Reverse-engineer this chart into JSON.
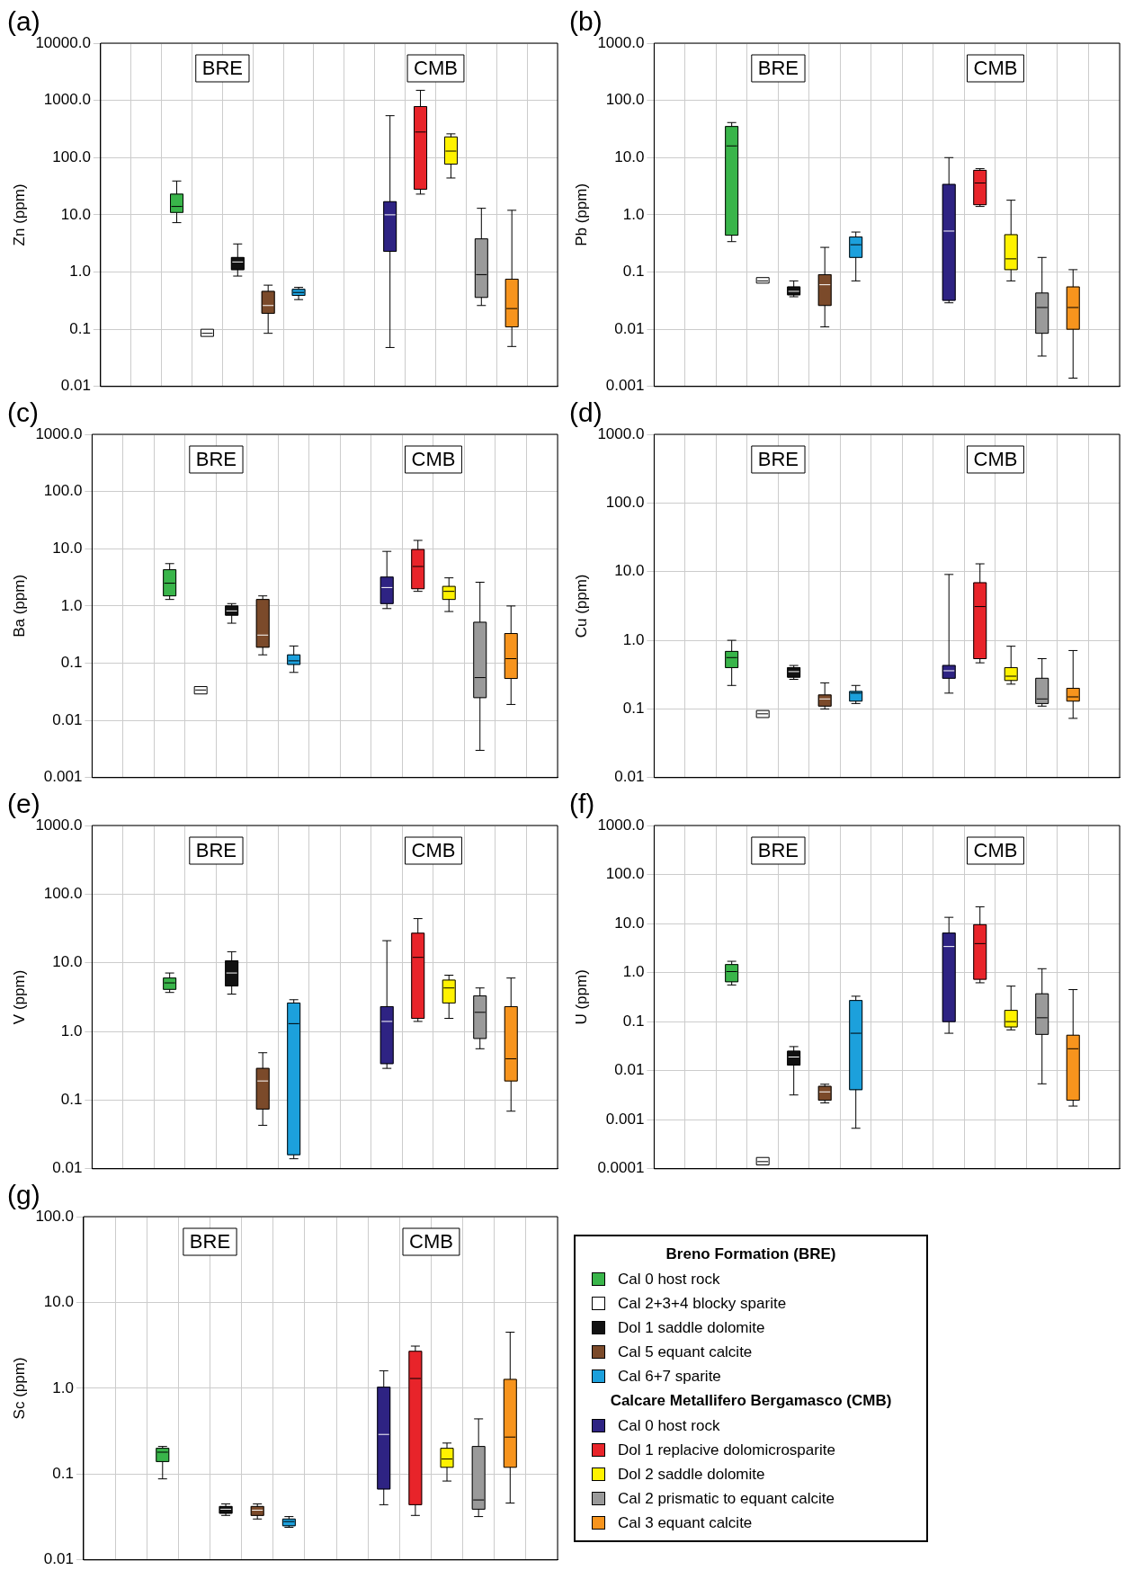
{
  "chart_data": [
    {
      "type": "box",
      "title": "(a)",
      "ylabel": "Zn (ppm)",
      "categories": [
        "BRE",
        "CMB"
      ],
      "log": true,
      "grid": true,
      "ylim": [
        0.01,
        10000
      ],
      "yticks": [
        0.01,
        0.1,
        {
          "value": 1,
          "label": "1.0"
        },
        {
          "value": 10,
          "label": "10.0"
        },
        {
          "value": 100,
          "label": "100.0"
        },
        {
          "value": 1000,
          "label": "1000.0"
        },
        {
          "value": 10000,
          "label": "10000.0"
        }
      ],
      "series": [
        {
          "color": "#39b54a",
          "boxes": [
            {
              "low": 7.3,
              "q1": 11,
              "median": 14,
              "q3": 23,
              "high": 39
            },
            null
          ]
        },
        {
          "color": "#ffffff",
          "boxes": [
            {
              "low": 0.075,
              "q1": 0.075,
              "median": 0.085,
              "q3": 0.1,
              "high": 0.1
            },
            null
          ]
        },
        {
          "color": "#111111",
          "boxes": [
            {
              "low": 0.85,
              "q1": 1.1,
              "median": 1.5,
              "q3": 1.8,
              "high": 3.1
            },
            null
          ]
        },
        {
          "color": "#7b4a2a",
          "boxes": [
            {
              "low": 0.085,
              "q1": 0.19,
              "median": 0.26,
              "q3": 0.46,
              "high": 0.59
            },
            null
          ]
        },
        {
          "color": "#1ca0dc",
          "boxes": [
            {
              "low": 0.33,
              "q1": 0.39,
              "median": 0.44,
              "q3": 0.5,
              "high": 0.54
            },
            null
          ]
        },
        {
          "color": "#2e2383",
          "boxes": [
            null,
            {
              "low": 0.048,
              "q1": 2.3,
              "median": 10,
              "q3": 17,
              "high": 540
            }
          ]
        },
        {
          "color": "#e8242a",
          "boxes": [
            null,
            {
              "low": 23,
              "q1": 28,
              "median": 280,
              "q3": 780,
              "high": 1500
            }
          ]
        },
        {
          "color": "#fff200",
          "boxes": [
            null,
            {
              "low": 44,
              "q1": 77,
              "median": 130,
              "q3": 230,
              "high": 260
            }
          ]
        },
        {
          "color": "#9a9a9a",
          "boxes": [
            null,
            {
              "low": 0.26,
              "q1": 0.36,
              "median": 0.9,
              "q3": 3.8,
              "high": 13
            }
          ]
        },
        {
          "color": "#f7941d",
          "boxes": [
            null,
            {
              "low": 0.05,
              "q1": 0.11,
              "median": 0.23,
              "q3": 0.75,
              "high": 12
            }
          ]
        }
      ]
    },
    {
      "type": "box",
      "title": "(b)",
      "ylabel": "Pb (ppm)",
      "categories": [
        "BRE",
        "CMB"
      ],
      "log": true,
      "grid": true,
      "ylim": [
        0.001,
        1000
      ],
      "yticks": [
        0.001,
        0.01,
        0.1,
        {
          "value": 1,
          "label": "1.0"
        },
        {
          "value": 10,
          "label": "10.0"
        },
        {
          "value": 100,
          "label": "100.0"
        },
        {
          "value": 1000,
          "label": "1000.0"
        }
      ],
      "series": [
        {
          "color": "#39b54a",
          "boxes": [
            {
              "low": 0.34,
              "q1": 0.44,
              "median": 16,
              "q3": 35,
              "high": 41
            },
            null
          ]
        },
        {
          "color": "#ffffff",
          "boxes": [
            {
              "low": 0.064,
              "q1": 0.064,
              "median": 0.07,
              "q3": 0.08,
              "high": 0.08
            },
            null
          ]
        },
        {
          "color": "#111111",
          "boxes": [
            {
              "low": 0.037,
              "q1": 0.04,
              "median": 0.046,
              "q3": 0.055,
              "high": 0.07
            },
            null
          ]
        },
        {
          "color": "#7b4a2a",
          "boxes": [
            {
              "low": 0.011,
              "q1": 0.026,
              "median": 0.06,
              "q3": 0.09,
              "high": 0.27
            },
            null
          ]
        },
        {
          "color": "#1ca0dc",
          "boxes": [
            {
              "low": 0.07,
              "q1": 0.18,
              "median": 0.3,
              "q3": 0.41,
              "high": 0.5
            },
            null
          ]
        },
        {
          "color": "#2e2383",
          "boxes": [
            null,
            {
              "low": 0.029,
              "q1": 0.032,
              "median": 0.52,
              "q3": 3.4,
              "high": 10
            }
          ]
        },
        {
          "color": "#e8242a",
          "boxes": [
            null,
            {
              "low": 1.4,
              "q1": 1.5,
              "median": 3.6,
              "q3": 6,
              "high": 6.4
            }
          ]
        },
        {
          "color": "#fff200",
          "boxes": [
            null,
            {
              "low": 0.07,
              "q1": 0.11,
              "median": 0.17,
              "q3": 0.45,
              "high": 1.8
            }
          ]
        },
        {
          "color": "#9a9a9a",
          "boxes": [
            null,
            {
              "low": 0.0034,
              "q1": 0.0085,
              "median": 0.024,
              "q3": 0.043,
              "high": 0.18
            }
          ]
        },
        {
          "color": "#f7941d",
          "boxes": [
            null,
            {
              "low": 0.0014,
              "q1": 0.01,
              "median": 0.024,
              "q3": 0.055,
              "high": 0.11
            }
          ]
        }
      ]
    },
    {
      "type": "box",
      "title": "(c)",
      "ylabel": "Ba (ppm)",
      "categories": [
        "BRE",
        "CMB"
      ],
      "log": true,
      "grid": true,
      "ylim": [
        0.001,
        1000
      ],
      "yticks": [
        0.001,
        0.01,
        0.1,
        {
          "value": 1,
          "label": "1.0"
        },
        {
          "value": 10,
          "label": "10.0"
        },
        {
          "value": 100,
          "label": "100.0"
        },
        {
          "value": 1000,
          "label": "1000.0"
        }
      ],
      "series": [
        {
          "color": "#39b54a",
          "boxes": [
            {
              "low": 1.3,
              "q1": 1.5,
              "median": 2.5,
              "q3": 4.3,
              "high": 5.5
            },
            null
          ]
        },
        {
          "color": "#ffffff",
          "boxes": [
            {
              "low": 0.029,
              "q1": 0.029,
              "median": 0.034,
              "q3": 0.039,
              "high": 0.039
            },
            null
          ]
        },
        {
          "color": "#111111",
          "boxes": [
            {
              "low": 0.5,
              "q1": 0.69,
              "median": 0.82,
              "q3": 1,
              "high": 1.1
            },
            null
          ]
        },
        {
          "color": "#7b4a2a",
          "boxes": [
            {
              "low": 0.14,
              "q1": 0.19,
              "median": 0.31,
              "q3": 1.3,
              "high": 1.5
            },
            null
          ]
        },
        {
          "color": "#1ca0dc",
          "boxes": [
            {
              "low": 0.069,
              "q1": 0.095,
              "median": 0.11,
              "q3": 0.14,
              "high": 0.2
            },
            null
          ]
        },
        {
          "color": "#2e2383",
          "boxes": [
            null,
            {
              "low": 0.9,
              "q1": 1.1,
              "median": 2.1,
              "q3": 3.2,
              "high": 9
            }
          ]
        },
        {
          "color": "#e8242a",
          "boxes": [
            null,
            {
              "low": 1.8,
              "q1": 2,
              "median": 4.9,
              "q3": 9.7,
              "high": 14
            }
          ]
        },
        {
          "color": "#fff200",
          "boxes": [
            null,
            {
              "low": 0.8,
              "q1": 1.3,
              "median": 1.8,
              "q3": 2.2,
              "high": 3.1
            }
          ]
        },
        {
          "color": "#9a9a9a",
          "boxes": [
            null,
            {
              "low": 0.003,
              "q1": 0.025,
              "median": 0.056,
              "q3": 0.52,
              "high": 2.6
            }
          ]
        },
        {
          "color": "#f7941d",
          "boxes": [
            null,
            {
              "low": 0.019,
              "q1": 0.054,
              "median": 0.12,
              "q3": 0.33,
              "high": 1
            }
          ]
        }
      ]
    },
    {
      "type": "box",
      "title": "(d)",
      "ylabel": "Cu (ppm)",
      "categories": [
        "BRE",
        "CMB"
      ],
      "log": true,
      "grid": true,
      "ylim": [
        0.01,
        1000
      ],
      "yticks": [
        0.01,
        0.1,
        {
          "value": 1,
          "label": "1.0"
        },
        {
          "value": 10,
          "label": "10.0"
        },
        {
          "value": 100,
          "label": "100.0"
        },
        {
          "value": 1000,
          "label": "1000.0"
        }
      ],
      "series": [
        {
          "color": "#39b54a",
          "boxes": [
            {
              "low": 0.22,
              "q1": 0.4,
              "median": 0.56,
              "q3": 0.69,
              "high": 1
            },
            null
          ]
        },
        {
          "color": "#ffffff",
          "boxes": [
            {
              "low": 0.075,
              "q1": 0.075,
              "median": 0.085,
              "q3": 0.095,
              "high": 0.095
            },
            null
          ]
        },
        {
          "color": "#111111",
          "boxes": [
            {
              "low": 0.27,
              "q1": 0.29,
              "median": 0.35,
              "q3": 0.4,
              "high": 0.43
            },
            null
          ]
        },
        {
          "color": "#7b4a2a",
          "boxes": [
            {
              "low": 0.1,
              "q1": 0.11,
              "median": 0.14,
              "q3": 0.16,
              "high": 0.24
            },
            null
          ]
        },
        {
          "color": "#1ca0dc",
          "boxes": [
            {
              "low": 0.12,
              "q1": 0.13,
              "median": 0.17,
              "q3": 0.18,
              "high": 0.22
            },
            null
          ]
        },
        {
          "color": "#2e2383",
          "boxes": [
            null,
            {
              "low": 0.17,
              "q1": 0.28,
              "median": 0.36,
              "q3": 0.43,
              "high": 9.1
            }
          ]
        },
        {
          "color": "#e8242a",
          "boxes": [
            null,
            {
              "low": 0.47,
              "q1": 0.54,
              "median": 3.1,
              "q3": 6.9,
              "high": 13
            }
          ]
        },
        {
          "color": "#fff200",
          "boxes": [
            null,
            {
              "low": 0.23,
              "q1": 0.26,
              "median": 0.3,
              "q3": 0.4,
              "high": 0.82
            }
          ]
        },
        {
          "color": "#9a9a9a",
          "boxes": [
            null,
            {
              "low": 0.11,
              "q1": 0.12,
              "median": 0.14,
              "q3": 0.28,
              "high": 0.54
            }
          ]
        },
        {
          "color": "#f7941d",
          "boxes": [
            null,
            {
              "low": 0.073,
              "q1": 0.13,
              "median": 0.15,
              "q3": 0.2,
              "high": 0.71
            }
          ]
        }
      ]
    },
    {
      "type": "box",
      "title": "(e)",
      "ylabel": "V (ppm)",
      "categories": [
        "BRE",
        "CMB"
      ],
      "log": true,
      "grid": true,
      "ylim": [
        0.01,
        1000
      ],
      "yticks": [
        0.01,
        0.1,
        {
          "value": 1,
          "label": "1.0"
        },
        {
          "value": 10,
          "label": "10.0"
        },
        {
          "value": 100,
          "label": "100.0"
        },
        {
          "value": 1000,
          "label": "1000.0"
        }
      ],
      "series": [
        {
          "color": "#39b54a",
          "boxes": [
            {
              "low": 3.7,
              "q1": 4.1,
              "median": 5.1,
              "q3": 6,
              "high": 7.1
            },
            null
          ]
        },
        {
          "color": "#ffffff",
          "boxes": [
            null,
            null
          ]
        },
        {
          "color": "#111111",
          "boxes": [
            {
              "low": 3.5,
              "q1": 4.6,
              "median": 7.1,
              "q3": 10.7,
              "high": 14.5
            },
            null
          ]
        },
        {
          "color": "#7b4a2a",
          "boxes": [
            {
              "low": 0.043,
              "q1": 0.074,
              "median": 0.19,
              "q3": 0.29,
              "high": 0.49
            },
            null
          ]
        },
        {
          "color": "#1ca0dc",
          "boxes": [
            {
              "low": 0.014,
              "q1": 0.016,
              "median": 1.3,
              "q3": 2.6,
              "high": 2.9
            },
            null
          ]
        },
        {
          "color": "#2e2383",
          "boxes": [
            null,
            {
              "low": 0.29,
              "q1": 0.34,
              "median": 1.4,
              "q3": 2.3,
              "high": 21
            }
          ]
        },
        {
          "color": "#e8242a",
          "boxes": [
            null,
            {
              "low": 1.4,
              "q1": 1.55,
              "median": 12,
              "q3": 27,
              "high": 44
            }
          ]
        },
        {
          "color": "#fff200",
          "boxes": [
            null,
            {
              "low": 1.55,
              "q1": 2.6,
              "median": 4.3,
              "q3": 5.6,
              "high": 6.6
            }
          ]
        },
        {
          "color": "#9a9a9a",
          "boxes": [
            null,
            {
              "low": 0.56,
              "q1": 0.79,
              "median": 1.9,
              "q3": 3.3,
              "high": 4.3
            }
          ]
        },
        {
          "color": "#f7941d",
          "boxes": [
            null,
            {
              "low": 0.069,
              "q1": 0.19,
              "median": 0.4,
              "q3": 2.3,
              "high": 6
            }
          ]
        }
      ]
    },
    {
      "type": "box",
      "title": "(f)",
      "ylabel": "U (ppm)",
      "categories": [
        "BRE",
        "CMB"
      ],
      "log": true,
      "grid": true,
      "ylim": [
        0.0001,
        1000
      ],
      "yticks": [
        0.0001,
        0.001,
        0.01,
        0.1,
        {
          "value": 1,
          "label": "1.0"
        },
        {
          "value": 10,
          "label": "10.0"
        },
        {
          "value": 100,
          "label": "100.0"
        },
        {
          "value": 1000,
          "label": "1000.0"
        }
      ],
      "series": [
        {
          "color": "#39b54a",
          "boxes": [
            {
              "low": 0.56,
              "q1": 0.65,
              "median": 1.05,
              "q3": 1.46,
              "high": 1.7
            },
            null
          ]
        },
        {
          "color": "#ffffff",
          "boxes": [
            {
              "low": 0.00012,
              "q1": 0.00012,
              "median": 0.00014,
              "q3": 0.00017,
              "high": 0.00017
            },
            null
          ]
        },
        {
          "color": "#111111",
          "boxes": [
            {
              "low": 0.0032,
              "q1": 0.013,
              "median": 0.019,
              "q3": 0.025,
              "high": 0.031
            },
            null
          ]
        },
        {
          "color": "#7b4a2a",
          "boxes": [
            {
              "low": 0.0022,
              "q1": 0.0025,
              "median": 0.0037,
              "q3": 0.0048,
              "high": 0.0053
            },
            null
          ]
        },
        {
          "color": "#1ca0dc",
          "boxes": [
            {
              "low": 0.00067,
              "q1": 0.0041,
              "median": 0.058,
              "q3": 0.27,
              "high": 0.33
            },
            null
          ]
        },
        {
          "color": "#2e2383",
          "boxes": [
            null,
            {
              "low": 0.058,
              "q1": 0.1,
              "median": 3.4,
              "q3": 6.4,
              "high": 13.4
            }
          ]
        },
        {
          "color": "#e8242a",
          "boxes": [
            null,
            {
              "low": 0.62,
              "q1": 0.73,
              "median": 3.9,
              "q3": 9.5,
              "high": 22
            }
          ]
        },
        {
          "color": "#fff200",
          "boxes": [
            null,
            {
              "low": 0.068,
              "q1": 0.078,
              "median": 0.1,
              "q3": 0.17,
              "high": 0.53
            }
          ]
        },
        {
          "color": "#9a9a9a",
          "boxes": [
            null,
            {
              "low": 0.0054,
              "q1": 0.055,
              "median": 0.12,
              "q3": 0.37,
              "high": 1.2
            }
          ]
        },
        {
          "color": "#f7941d",
          "boxes": [
            null,
            {
              "low": 0.0019,
              "q1": 0.0025,
              "median": 0.028,
              "q3": 0.053,
              "high": 0.45
            }
          ]
        }
      ]
    },
    {
      "type": "box",
      "title": "(g)",
      "ylabel": "Sc (ppm)",
      "categories": [
        "BRE",
        "CMB"
      ],
      "log": true,
      "grid": true,
      "legend": "right",
      "legend_title": [
        "Breno Formation (BRE)",
        "Calcare Metallifero Bergamasco (CMB)"
      ],
      "ylim": [
        0.01,
        100
      ],
      "yticks": [
        0.01,
        0.1,
        {
          "value": 1,
          "label": "1.0"
        },
        {
          "value": 10,
          "label": "10.0"
        },
        {
          "value": 100,
          "label": "100.0"
        }
      ],
      "series": [
        {
          "name": "Cal 0 host rock",
          "color": "#39b54a",
          "boxes": [
            {
              "low": 0.088,
              "q1": 0.14,
              "median": 0.18,
              "q3": 0.2,
              "high": 0.21
            },
            null
          ]
        },
        {
          "name": "Cal 2+3+4 blocky sparite",
          "color": "#ffffff",
          "boxes": [
            null,
            null
          ]
        },
        {
          "name": "Dol 1 saddle dolomite",
          "color": "#111111",
          "boxes": [
            {
              "low": 0.033,
              "q1": 0.035,
              "median": 0.039,
              "q3": 0.042,
              "high": 0.045
            },
            null
          ]
        },
        {
          "name": "Cal 5 equant calcite",
          "color": "#7b4a2a",
          "boxes": [
            {
              "low": 0.03,
              "q1": 0.033,
              "median": 0.038,
              "q3": 0.042,
              "high": 0.045
            },
            null
          ]
        },
        {
          "name": "Cal 6+7 sparite",
          "color": "#1ca0dc",
          "boxes": [
            {
              "low": 0.024,
              "q1": 0.025,
              "median": 0.028,
              "q3": 0.03,
              "high": 0.032
            },
            null
          ]
        },
        {
          "name": "Cal 0 host rock",
          "color": "#2e2383",
          "boxes": [
            null,
            {
              "low": 0.044,
              "q1": 0.067,
              "median": 0.29,
              "q3": 1.03,
              "high": 1.6
            }
          ]
        },
        {
          "name": "Dol 1 replacive dolomicrosparite",
          "color": "#e8242a",
          "boxes": [
            null,
            {
              "low": 0.033,
              "q1": 0.044,
              "median": 1.3,
              "q3": 2.7,
              "high": 3.1
            }
          ]
        },
        {
          "name": "Dol 2 saddle dolomite",
          "color": "#fff200",
          "boxes": [
            null,
            {
              "low": 0.083,
              "q1": 0.12,
              "median": 0.15,
              "q3": 0.2,
              "high": 0.23
            }
          ]
        },
        {
          "name": "Cal 2 prismatic to equant calcite",
          "color": "#9a9a9a",
          "boxes": [
            null,
            {
              "low": 0.032,
              "q1": 0.039,
              "median": 0.05,
              "q3": 0.21,
              "high": 0.44
            }
          ]
        },
        {
          "name": "Cal 3 equant calcite",
          "color": "#f7941d",
          "boxes": [
            null,
            {
              "low": 0.046,
              "q1": 0.12,
              "median": 0.27,
              "q3": 1.27,
              "high": 4.5
            }
          ]
        }
      ]
    }
  ]
}
